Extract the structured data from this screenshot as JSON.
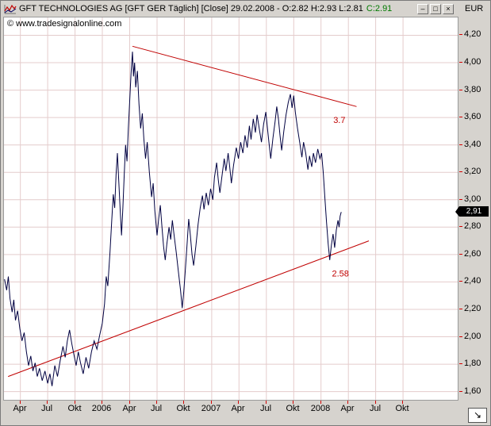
{
  "window": {
    "titlebar": {
      "main": "GFT TECHNOLOGIES AG [GFT GER  Täglich] [Close] 29.02.2008 - O:2.82 H:2.93 L:2.81",
      "close_value": "C:2.91",
      "buttons": [
        {
          "name": "minimize",
          "glyph": "–"
        },
        {
          "name": "restore",
          "glyph": "□"
        },
        {
          "name": "close",
          "glyph": "×"
        }
      ],
      "currency": "EUR"
    },
    "watermark": "© www.tradesignalonline.com",
    "corner_button": "↘"
  },
  "chart_data": {
    "type": "line",
    "title": "GFT TECHNOLOGIES AG [GFT GER Täglich] [Close]",
    "date": "29.02.2008",
    "ohlc": {
      "open": 2.82,
      "high": 2.93,
      "low": 2.81,
      "close": 2.91
    },
    "currency": "EUR",
    "grid": true,
    "legend": false,
    "ylim": [
      1.54,
      4.33
    ],
    "x_range": [
      -0.6,
      16.0
    ],
    "x_tick_labels": [
      "Apr",
      "Jul",
      "Okt",
      "2006",
      "Apr",
      "Jul",
      "Okt",
      "2007",
      "Apr",
      "Jul",
      "Okt",
      "2008",
      "Apr",
      "Jul",
      "Okt"
    ],
    "y_ticks": [
      {
        "v": 4.2,
        "label": "4,20"
      },
      {
        "v": 4.0,
        "label": "4,00"
      },
      {
        "v": 3.8,
        "label": "3,80"
      },
      {
        "v": 3.6,
        "label": "3,60"
      },
      {
        "v": 3.4,
        "label": "3,40"
      },
      {
        "v": 3.2,
        "label": "3,20"
      },
      {
        "v": 3.0,
        "label": "3,00"
      },
      {
        "v": 2.8,
        "label": "2,80"
      },
      {
        "v": 2.6,
        "label": "2,60"
      },
      {
        "v": 2.4,
        "label": "2,40"
      },
      {
        "v": 2.2,
        "label": "2,20"
      },
      {
        "v": 2.0,
        "label": "2,00"
      },
      {
        "v": 1.8,
        "label": "1,80"
      },
      {
        "v": 1.6,
        "label": "1,60"
      }
    ],
    "last_price": {
      "value": 2.91,
      "label": "2,91"
    },
    "trendlines": [
      {
        "name": "resistance",
        "from": [
          4.1,
          4.12
        ],
        "to": [
          12.3,
          3.68
        ],
        "label": "3.7",
        "label_at": [
          11.45,
          3.56
        ]
      },
      {
        "name": "support",
        "from": [
          -0.45,
          1.71
        ],
        "to": [
          12.75,
          2.7
        ],
        "label": "2.58",
        "label_at": [
          11.4,
          2.44
        ]
      }
    ],
    "colors": {
      "grid": "#e4cccc",
      "price": "#000041",
      "trend": "#c00000",
      "tick": "#d40000",
      "annotation": "#c00000",
      "badge_bg": "#000000",
      "badge_text": "#ffffff",
      "close_green": "#007a00"
    },
    "series": [
      {
        "name": "Close",
        "color": "#000041",
        "points": [
          [
            -0.58,
            2.42
          ],
          [
            -0.5,
            2.34
          ],
          [
            -0.44,
            2.44
          ],
          [
            -0.38,
            2.28
          ],
          [
            -0.3,
            2.18
          ],
          [
            -0.24,
            2.27
          ],
          [
            -0.18,
            2.12
          ],
          [
            -0.1,
            2.19
          ],
          [
            -0.02,
            2.06
          ],
          [
            0.06,
            1.97
          ],
          [
            0.14,
            2.03
          ],
          [
            0.22,
            1.89
          ],
          [
            0.3,
            1.79
          ],
          [
            0.38,
            1.86
          ],
          [
            0.46,
            1.75
          ],
          [
            0.54,
            1.81
          ],
          [
            0.62,
            1.71
          ],
          [
            0.7,
            1.77
          ],
          [
            0.8,
            1.68
          ],
          [
            0.9,
            1.75
          ],
          [
            1.0,
            1.66
          ],
          [
            1.08,
            1.73
          ],
          [
            1.16,
            1.64
          ],
          [
            1.26,
            1.79
          ],
          [
            1.36,
            1.71
          ],
          [
            1.46,
            1.83
          ],
          [
            1.56,
            1.93
          ],
          [
            1.64,
            1.85
          ],
          [
            1.72,
            1.97
          ],
          [
            1.8,
            2.05
          ],
          [
            1.88,
            1.95
          ],
          [
            1.96,
            1.87
          ],
          [
            2.04,
            1.79
          ],
          [
            2.12,
            1.89
          ],
          [
            2.2,
            1.81
          ],
          [
            2.3,
            1.73
          ],
          [
            2.4,
            1.85
          ],
          [
            2.5,
            1.77
          ],
          [
            2.6,
            1.89
          ],
          [
            2.7,
            1.97
          ],
          [
            2.8,
            1.91
          ],
          [
            2.9,
            2.01
          ],
          [
            3.0,
            2.1
          ],
          [
            3.08,
            2.24
          ],
          [
            3.14,
            2.44
          ],
          [
            3.2,
            2.37
          ],
          [
            3.28,
            2.62
          ],
          [
            3.34,
            2.84
          ],
          [
            3.4,
            3.04
          ],
          [
            3.45,
            2.94
          ],
          [
            3.5,
            3.18
          ],
          [
            3.55,
            3.34
          ],
          [
            3.6,
            3.14
          ],
          [
            3.65,
            2.94
          ],
          [
            3.7,
            2.74
          ],
          [
            3.75,
            2.94
          ],
          [
            3.8,
            3.18
          ],
          [
            3.85,
            3.4
          ],
          [
            3.9,
            3.28
          ],
          [
            3.95,
            3.52
          ],
          [
            4.0,
            3.72
          ],
          [
            4.05,
            3.92
          ],
          [
            4.1,
            4.08
          ],
          [
            4.14,
            3.9
          ],
          [
            4.18,
            4.0
          ],
          [
            4.22,
            3.82
          ],
          [
            4.28,
            3.94
          ],
          [
            4.34,
            3.7
          ],
          [
            4.4,
            3.52
          ],
          [
            4.46,
            3.63
          ],
          [
            4.52,
            3.44
          ],
          [
            4.58,
            3.3
          ],
          [
            4.64,
            3.42
          ],
          [
            4.72,
            3.2
          ],
          [
            4.8,
            3.02
          ],
          [
            4.86,
            3.12
          ],
          [
            4.92,
            2.92
          ],
          [
            5.0,
            2.74
          ],
          [
            5.06,
            2.86
          ],
          [
            5.12,
            2.96
          ],
          [
            5.18,
            2.8
          ],
          [
            5.24,
            2.66
          ],
          [
            5.3,
            2.56
          ],
          [
            5.36,
            2.68
          ],
          [
            5.44,
            2.8
          ],
          [
            5.5,
            2.71
          ],
          [
            5.56,
            2.85
          ],
          [
            5.62,
            2.75
          ],
          [
            5.7,
            2.62
          ],
          [
            5.78,
            2.48
          ],
          [
            5.86,
            2.34
          ],
          [
            5.92,
            2.21
          ],
          [
            5.98,
            2.33
          ],
          [
            6.04,
            2.5
          ],
          [
            6.1,
            2.68
          ],
          [
            6.16,
            2.86
          ],
          [
            6.22,
            2.74
          ],
          [
            6.28,
            2.6
          ],
          [
            6.34,
            2.52
          ],
          [
            6.42,
            2.66
          ],
          [
            6.5,
            2.82
          ],
          [
            6.58,
            2.94
          ],
          [
            6.66,
            3.03
          ],
          [
            6.72,
            2.93
          ],
          [
            6.8,
            3.05
          ],
          [
            6.88,
            2.96
          ],
          [
            6.96,
            3.08
          ],
          [
            7.04,
            3.0
          ],
          [
            7.1,
            3.16
          ],
          [
            7.18,
            3.27
          ],
          [
            7.24,
            3.15
          ],
          [
            7.3,
            3.05
          ],
          [
            7.38,
            3.18
          ],
          [
            7.46,
            3.3
          ],
          [
            7.52,
            3.21
          ],
          [
            7.6,
            3.34
          ],
          [
            7.66,
            3.24
          ],
          [
            7.72,
            3.12
          ],
          [
            7.8,
            3.25
          ],
          [
            7.9,
            3.38
          ],
          [
            7.98,
            3.3
          ],
          [
            8.06,
            3.42
          ],
          [
            8.14,
            3.34
          ],
          [
            8.22,
            3.47
          ],
          [
            8.3,
            3.38
          ],
          [
            8.38,
            3.54
          ],
          [
            8.44,
            3.44
          ],
          [
            8.52,
            3.59
          ],
          [
            8.6,
            3.49
          ],
          [
            8.66,
            3.62
          ],
          [
            8.74,
            3.52
          ],
          [
            8.82,
            3.42
          ],
          [
            8.9,
            3.55
          ],
          [
            8.98,
            3.64
          ],
          [
            9.04,
            3.52
          ],
          [
            9.1,
            3.41
          ],
          [
            9.16,
            3.3
          ],
          [
            9.24,
            3.45
          ],
          [
            9.32,
            3.57
          ],
          [
            9.38,
            3.68
          ],
          [
            9.44,
            3.59
          ],
          [
            9.5,
            3.47
          ],
          [
            9.56,
            3.36
          ],
          [
            9.64,
            3.5
          ],
          [
            9.72,
            3.62
          ],
          [
            9.8,
            3.71
          ],
          [
            9.88,
            3.77
          ],
          [
            9.94,
            3.67
          ],
          [
            10.0,
            3.76
          ],
          [
            10.06,
            3.64
          ],
          [
            10.14,
            3.52
          ],
          [
            10.22,
            3.42
          ],
          [
            10.3,
            3.31
          ],
          [
            10.36,
            3.42
          ],
          [
            10.44,
            3.34
          ],
          [
            10.52,
            3.22
          ],
          [
            10.58,
            3.32
          ],
          [
            10.66,
            3.24
          ],
          [
            10.72,
            3.34
          ],
          [
            10.8,
            3.27
          ],
          [
            10.88,
            3.37
          ],
          [
            10.96,
            3.3
          ],
          [
            11.02,
            3.34
          ],
          [
            11.08,
            3.2
          ],
          [
            11.14,
            3.02
          ],
          [
            11.2,
            2.84
          ],
          [
            11.26,
            2.68
          ],
          [
            11.32,
            2.56
          ],
          [
            11.38,
            2.67
          ],
          [
            11.44,
            2.75
          ],
          [
            11.5,
            2.65
          ],
          [
            11.56,
            2.78
          ],
          [
            11.62,
            2.85
          ],
          [
            11.66,
            2.8
          ],
          [
            11.7,
            2.88
          ],
          [
            11.74,
            2.91
          ]
        ]
      }
    ]
  }
}
